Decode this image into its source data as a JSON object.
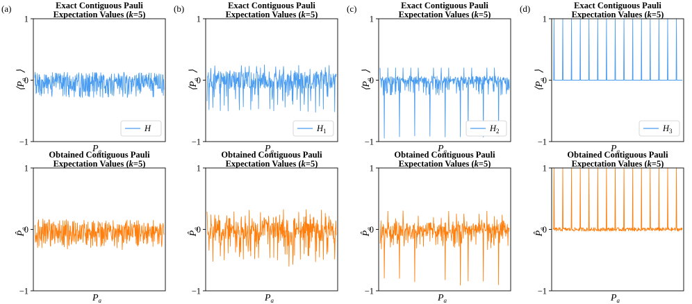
{
  "figure": {
    "series_colors": {
      "exact": "#4a9cf0",
      "obtained": "#ff7f0e"
    }
  },
  "chart_data": [
    {
      "panel": "(a)",
      "row": "exact",
      "type": "line",
      "title_line1": "Exact Contiguous Pauli",
      "title_line2": "Expectation Values (k = 5)",
      "title_k": "k",
      "title_eq": "=5)",
      "title_prefix": "Expectation Values (",
      "xlabel": "P",
      "xlabel_sub": "a⃗",
      "ylabel": "⟨P",
      "ylabel_sub": "a⃗",
      "ylabel_close": "⟩",
      "yticks": [
        "1",
        "0",
        "−1"
      ],
      "ylim": [
        -1,
        1
      ],
      "legend": "H",
      "legend_sub": "",
      "color": "#4a9cf0",
      "pattern": "dense",
      "amplitude": 0.13,
      "spike_count": 0,
      "spike_value": 0,
      "noise": 0
    },
    {
      "panel": "(b)",
      "row": "exact",
      "type": "line",
      "title_line1": "Exact Contiguous Pauli",
      "title_prefix": "Expectation Values (",
      "title_k": "k",
      "title_eq": "=5)",
      "xlabel": "P",
      "xlabel_sub": "a⃗",
      "ylabel": "⟨P",
      "ylabel_sub": "a⃗",
      "ylabel_close": "⟩",
      "yticks": [
        "1",
        "0",
        "−1"
      ],
      "ylim": [
        -1,
        1
      ],
      "legend": "H",
      "legend_sub": "1",
      "color": "#4a9cf0",
      "pattern": "periodic",
      "amplitude": 0.23,
      "spike_count": 34,
      "spike_value": -0.48,
      "noise": 0
    },
    {
      "panel": "(c)",
      "row": "exact",
      "type": "line",
      "title_line1": "Exact Contiguous Pauli",
      "title_prefix": "Expectation Values (",
      "title_k": "k",
      "title_eq": "=5)",
      "xlabel": "P",
      "xlabel_sub": "a⃗",
      "ylabel": "⟨P",
      "ylabel_sub": "a⃗",
      "ylabel_close": "⟩",
      "yticks": [
        "1",
        "0",
        "−1"
      ],
      "ylim": [
        -1,
        1
      ],
      "legend": "H",
      "legend_sub": "2",
      "color": "#4a9cf0",
      "pattern": "spiky",
      "amplitude": 0.1,
      "spike_count": 17,
      "spike_value": -0.95,
      "noise": 0
    },
    {
      "panel": "(d)",
      "row": "exact",
      "type": "line",
      "title_line1": "Exact Contiguous Pauli",
      "title_prefix": "Expectation Values (",
      "title_k": "k",
      "title_eq": "=5)",
      "xlabel": "P",
      "xlabel_sub": "a⃗",
      "ylabel": "⟨P",
      "ylabel_sub": "a⃗",
      "ylabel_close": "⟩",
      "yticks": [
        "1",
        "0",
        "−1"
      ],
      "ylim": [
        -1,
        1
      ],
      "legend": "H",
      "legend_sub": "3",
      "color": "#4a9cf0",
      "pattern": "deltas",
      "amplitude": 0,
      "spike_count": 15,
      "spike_value": 1.0,
      "noise": 0
    },
    {
      "panel": "",
      "row": "obtained",
      "type": "line",
      "title_line1": "Obtained Contiguous Pauli",
      "title_prefix": "Expectation Values (",
      "title_k": "k",
      "title_eq": "=5)",
      "xlabel": "P",
      "xlabel_sub": "a⃗",
      "ylabel": "P̂",
      "ylabel_sub": "a⃗",
      "ylabel_close": "",
      "yticks": [
        "1",
        "0",
        "−1"
      ],
      "ylim": [
        -1,
        1
      ],
      "legend": "",
      "legend_sub": "",
      "color": "#ff7f0e",
      "pattern": "dense",
      "amplitude": 0.13,
      "spike_count": 0,
      "spike_value": 0,
      "noise": 0.05
    },
    {
      "panel": "",
      "row": "obtained",
      "type": "line",
      "title_line1": "Obtained Contiguous Pauli",
      "title_prefix": "Expectation Values (",
      "title_k": "k",
      "title_eq": "=5)",
      "xlabel": "P",
      "xlabel_sub": "a⃗",
      "ylabel": "P̂",
      "ylabel_sub": "a⃗",
      "ylabel_close": "",
      "yticks": [
        "1",
        "0",
        "−1"
      ],
      "ylim": [
        -1,
        1
      ],
      "legend": "",
      "legend_sub": "",
      "color": "#ff7f0e",
      "pattern": "periodic",
      "amplitude": 0.25,
      "spike_count": 34,
      "spike_value": -0.5,
      "noise": 0.08
    },
    {
      "panel": "",
      "row": "obtained",
      "type": "line",
      "title_line1": "Obtained Contiguous Pauli",
      "title_prefix": "Expectation Values (",
      "title_k": "k",
      "title_eq": "=5)",
      "xlabel": "P",
      "xlabel_sub": "a⃗",
      "ylabel": "P̂",
      "ylabel_sub": "a⃗",
      "ylabel_close": "",
      "yticks": [
        "1",
        "0",
        "−1"
      ],
      "ylim": [
        -1,
        1
      ],
      "legend": "",
      "legend_sub": "",
      "color": "#ff7f0e",
      "pattern": "spiky",
      "amplitude": 0.12,
      "spike_count": 17,
      "spike_value": -0.9,
      "noise": 0.08
    },
    {
      "panel": "",
      "row": "obtained",
      "type": "line",
      "title_line1": "Obtained Contiguous Pauli",
      "title_prefix": "Expectation Values (",
      "title_k": "k",
      "title_eq": "=5)",
      "xlabel": "P",
      "xlabel_sub": "a⃗",
      "ylabel": "P̂",
      "ylabel_sub": "a⃗",
      "ylabel_close": "",
      "yticks": [
        "1",
        "0",
        "−1"
      ],
      "ylim": [
        -1,
        1
      ],
      "legend": "",
      "legend_sub": "",
      "color": "#ff7f0e",
      "pattern": "deltas",
      "amplitude": 0,
      "spike_count": 15,
      "spike_value": 1.0,
      "noise": 0.03
    }
  ]
}
